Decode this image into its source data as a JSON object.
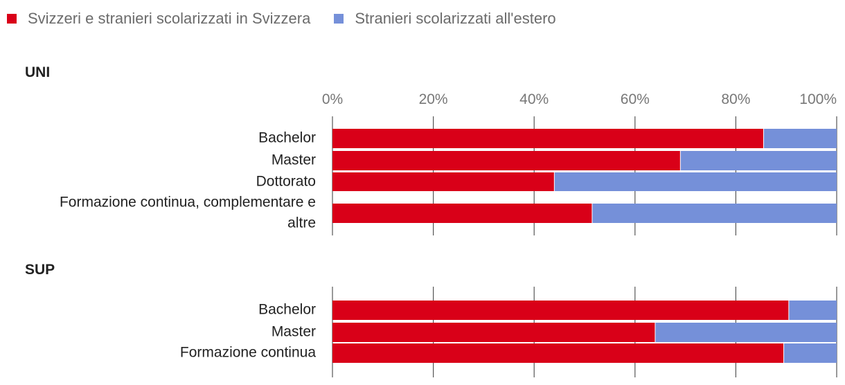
{
  "legend": [
    {
      "label": "Svizzeri e stranieri scolarizzati in Svizzera",
      "color": "#d90018"
    },
    {
      "label": "Stranieri scolarizzati all'estero",
      "color": "#7590d9"
    }
  ],
  "chart_data": [
    {
      "type": "bar",
      "orientation": "horizontal",
      "stacked": "percent",
      "title": "UNI",
      "xlim": [
        0,
        100
      ],
      "x_ticks": [
        "0%",
        "20%",
        "40%",
        "60%",
        "80%",
        "100%"
      ],
      "categories": [
        "Bachelor",
        "Master",
        "Dottorato",
        "Formazione continua, complementare e altre"
      ],
      "series": [
        {
          "name": "Svizzeri e stranieri scolarizzati in Svizzera",
          "color": "#d90018",
          "values": [
            85.5,
            69,
            44,
            51.5
          ]
        },
        {
          "name": "Stranieri scolarizzati all'estero",
          "color": "#7590d9",
          "values": [
            14.5,
            31,
            56,
            48.5
          ]
        }
      ],
      "grid": true
    },
    {
      "type": "bar",
      "orientation": "horizontal",
      "stacked": "percent",
      "title": "SUP",
      "xlim": [
        0,
        100
      ],
      "categories": [
        "Bachelor",
        "Master",
        "Formazione continua"
      ],
      "series": [
        {
          "name": "Svizzeri e stranieri scolarizzati in Svizzera",
          "color": "#d90018",
          "values": [
            90.5,
            64,
            89.5
          ]
        },
        {
          "name": "Stranieri scolarizzati all'estero",
          "color": "#7590d9",
          "values": [
            9.5,
            36,
            10.5
          ]
        }
      ],
      "grid": true
    }
  ]
}
